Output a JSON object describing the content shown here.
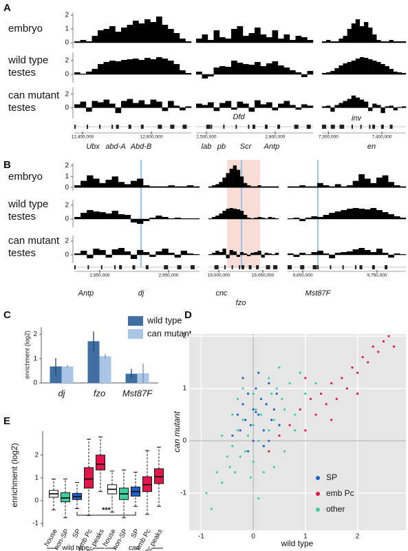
{
  "chart_data": [
    {
      "type": "genome_tracks",
      "panel_label": "A",
      "rows": [
        {
          "label": [
            "embryo"
          ],
          "ylim": [
            -0.4,
            2.2
          ],
          "yticks": [
            0,
            1,
            2
          ],
          "values": [
            [
              0.1,
              0.2,
              0.1,
              0.5,
              0.9,
              1.0,
              1.2,
              0.8,
              1.1,
              1.3,
              1.6,
              1.4,
              1.7,
              1.5,
              1.9,
              1.3,
              1.0,
              0.7,
              0.3,
              0.1
            ],
            [
              0.3,
              0.6,
              0.2,
              0.9,
              0.4,
              0.3,
              1.0,
              1.2,
              0.5,
              0.7,
              1.1,
              0.6,
              0.4,
              0.9,
              0.3,
              0.6,
              0.2,
              0.5,
              0.4,
              0.2
            ],
            [
              0.1,
              0.2,
              0.1,
              0.1,
              0.3,
              0.5,
              1.0,
              1.4,
              1.7,
              1.2,
              1.5,
              1.1,
              0.6,
              0.2,
              0.1,
              0.1,
              0.2,
              0.1,
              0.1,
              0.1
            ]
          ]
        },
        {
          "label": [
            "wild type",
            "testes"
          ],
          "ylim": [
            -1.2,
            3.2
          ],
          "yticks": [
            0,
            2
          ],
          "values": [
            [
              0.3,
              0.1,
              0.4,
              0.8,
              1.5,
              1.8,
              2.0,
              1.9,
              2.1,
              2.2,
              2.3,
              2.1,
              2.4,
              2.2,
              2.5,
              2.3,
              2.0,
              1.5,
              0.6,
              0.2
            ],
            [
              0.4,
              -0.6,
              -0.3,
              1.0,
              1.2,
              1.1,
              2.0,
              1.7,
              1.5,
              1.4,
              1.8,
              1.2,
              1.6,
              1.9,
              1.3,
              1.0,
              0.6,
              0.3,
              -0.4,
              0.5
            ],
            [
              0.2,
              0.3,
              0.5,
              0.9,
              1.3,
              1.6,
              1.8,
              2.0,
              2.3,
              2.5,
              2.4,
              2.2,
              2.0,
              1.8,
              1.5,
              1.2,
              0.8,
              0.4,
              0.3,
              0.2
            ]
          ]
        },
        {
          "label": [
            "can mutant",
            "testes"
          ],
          "ylim": [
            -1.6,
            3
          ],
          "yticks": [
            0,
            2
          ],
          "values": [
            [
              0.5,
              0.9,
              -0.6,
              1.0,
              0.8,
              1.2,
              0.6,
              -0.8,
              1.0,
              1.3,
              0.7,
              1.1,
              0.5,
              1.2,
              0.9,
              -0.5,
              1.0,
              0.3,
              -0.4,
              0.2
            ],
            [
              0.6,
              0.4,
              0.8,
              -0.5,
              0.7,
              1.0,
              -0.3,
              0.9,
              0.6,
              -0.6,
              1.1,
              0.5,
              0.8,
              -0.4,
              0.6,
              1.0,
              0.4,
              -0.3,
              0.5,
              0.3
            ],
            [
              0.2,
              0.3,
              -0.6,
              0.4,
              0.7,
              1.0,
              1.3,
              1.8,
              1.5,
              1.2,
              0.9,
              -0.5,
              0.6,
              0.4,
              -0.8,
              0.2,
              0.3,
              -0.4,
              0.1,
              0.2
            ]
          ]
        }
      ],
      "segments": [
        {
          "xlim": [
            12376000,
            12716000
          ],
          "xticks": [
            {
              "value": 12400000,
              "label": "12,400,000"
            },
            {
              "value": 12600000,
              "label": "12,600,000"
            }
          ],
          "genes": [
            "Ubx",
            "abd-A",
            "Abd-B"
          ]
        },
        {
          "xlim": [
            2455000,
            2965000
          ],
          "xticks": [
            {
              "value": 2500000,
              "label": "2,500,000"
            },
            {
              "value": 2800000,
              "label": "2,800,000"
            }
          ],
          "genes": [
            "Dfd",
            "lab",
            "pb",
            "Scr",
            "Antp"
          ]
        },
        {
          "xlim": [
            7288000,
            7445000
          ],
          "xticks": [
            {
              "value": 7300000,
              "label": "7,300,000"
            },
            {
              "value": 7400000,
              "label": "7,400,000"
            }
          ],
          "genes": [
            "inv",
            "en"
          ]
        }
      ]
    },
    {
      "type": "genome_tracks",
      "panel_label": "B",
      "rows": [
        {
          "label": [
            "embryo"
          ],
          "ylim": [
            -0.3,
            2.2
          ],
          "yticks": [
            0,
            1,
            2
          ],
          "values": [
            [
              0.2,
              0.6,
              1.1,
              0.8,
              0.4,
              0.7,
              1.0,
              0.5,
              0.3,
              0.6,
              0.8,
              0.2,
              0.1,
              0.1,
              0.1,
              0.2,
              0.1,
              0.1,
              0.2,
              0.1
            ],
            [
              0.1,
              0.2,
              0.3,
              0.5,
              0.9,
              1.3,
              1.7,
              2.0,
              1.6,
              1.0,
              0.4,
              0.2,
              0.1,
              0.1,
              0.2,
              0.1,
              0.1,
              0.1,
              0.1,
              0.1
            ],
            [
              0.1,
              0.1,
              0.2,
              0.1,
              0.1,
              0.4,
              0.2,
              0.1,
              0.3,
              0.1,
              0.2,
              0.6,
              1.2,
              0.8,
              0.4,
              0.9,
              1.1,
              0.5,
              0.2,
              0.1
            ]
          ]
        },
        {
          "label": [
            "wild type",
            "testes"
          ],
          "ylim": [
            -1.2,
            2.8
          ],
          "yticks": [
            0,
            2
          ],
          "values": [
            [
              0.3,
              0.9,
              1.3,
              1.1,
              1.0,
              0.8,
              1.2,
              0.7,
              0.6,
              -0.5,
              -0.7,
              -0.3,
              0.2,
              0.5,
              0.3,
              0.1,
              0.2,
              0.1,
              0.1,
              0.1
            ],
            [
              0.1,
              0.3,
              0.5,
              0.8,
              1.2,
              1.5,
              1.6,
              1.5,
              1.4,
              1.2,
              0.6,
              0.2,
              0.1,
              0.2,
              0.3,
              0.2,
              0.1,
              0.3,
              0.2,
              0.1
            ],
            [
              0.1,
              0.2,
              -0.3,
              0.2,
              0.4,
              0.3,
              0.6,
              0.9,
              1.1,
              1.3,
              1.5,
              1.6,
              1.5,
              1.4,
              1.6,
              1.3,
              1.0,
              0.7,
              0.4,
              0.2
            ]
          ]
        },
        {
          "label": [
            "can mutant",
            "testes"
          ],
          "ylim": [
            -1.2,
            2.8
          ],
          "yticks": [
            0,
            2
          ],
          "values": [
            [
              0.2,
              0.6,
              -0.5,
              0.9,
              0.7,
              -0.4,
              0.8,
              1.0,
              0.5,
              -0.6,
              0.7,
              0.4,
              -0.3,
              0.5,
              0.9,
              0.3,
              -0.4,
              0.6,
              0.2,
              0.1
            ],
            [
              0.1,
              0.3,
              0.6,
              0.4,
              0.9,
              -0.5,
              0.7,
              0.5,
              -0.3,
              0.4,
              0.2,
              -0.2,
              0.3,
              0.4,
              0.6,
              -0.4,
              0.3,
              0.2,
              0.1,
              0.3
            ],
            [
              0.2,
              -0.3,
              0.3,
              0.1,
              0.4,
              0.6,
              0.2,
              -0.5,
              0.3,
              0.4,
              0.5,
              0.8,
              1.0,
              0.7,
              0.4,
              0.9,
              0.3,
              -0.4,
              0.2,
              0.1
            ]
          ]
        }
      ],
      "segments": [
        {
          "xlim": [
            2813000,
            2995000
          ],
          "xticks": [
            {
              "value": 2850000,
              "label": "2,850,000"
            },
            {
              "value": 2950000,
              "label": "2,950,000"
            }
          ],
          "genes": [
            "Antp",
            "dj"
          ]
        },
        {
          "xlim": [
            18988300,
            19068000
          ],
          "xticks": [
            {
              "value": 19000000,
              "label": "19,000,000"
            },
            {
              "value": 19050000,
              "label": "19,050,000"
            }
          ],
          "genes": [
            "cnc",
            "fzo"
          ]
        },
        {
          "xlim": [
            9629600,
            9788900
          ],
          "xticks": [
            {
              "value": 9650000,
              "label": "9,650,000"
            },
            {
              "value": 9750000,
              "label": "9,750,000"
            }
          ],
          "genes": [
            "Mst87F"
          ]
        }
      ]
    },
    {
      "type": "bar",
      "panel_label": "C",
      "y_label": "enrichment (log2)",
      "categories": [
        "dj",
        "fzo",
        "Mst87F"
      ],
      "series": [
        {
          "name": "wild type",
          "color": "#3f6fa3",
          "values": [
            0.68,
            1.72,
            0.38
          ],
          "errors": [
            0.35,
            0.4,
            0.2
          ]
        },
        {
          "name": "can mutant",
          "color": "#a9c6e6",
          "values": [
            0.68,
            1.1,
            0.4
          ],
          "errors": [
            0.05,
            0.1,
            0.4
          ]
        }
      ],
      "ylim": [
        0,
        2.3
      ],
      "yticks": [
        0,
        1,
        2
      ]
    },
    {
      "type": "scatter",
      "panel_label": "D",
      "x_label": "wild type",
      "y_label": "can mutant",
      "xlim": [
        -1.23,
        2.93
      ],
      "ylim": [
        -1.71,
        2.04
      ],
      "xticks": [
        -1,
        0,
        1,
        2
      ],
      "yticks": [
        -1,
        0,
        1,
        2
      ],
      "grid": true,
      "series": [
        {
          "name": "other",
          "color": "#3fcf9c",
          "x": [
            -0.9,
            -0.7,
            -0.6,
            -0.5,
            -0.45,
            -0.4,
            -0.35,
            -0.3,
            -0.25,
            -0.2,
            -0.15,
            -0.1,
            -0.05,
            0,
            0,
            0.05,
            0.1,
            0.15,
            0.2,
            0.25,
            0.3,
            0.35,
            0.4,
            0.45,
            0.5,
            0.55,
            0.6,
            0.7,
            0.8,
            0.9,
            1.0,
            -0.6,
            -0.3,
            0.1,
            0.3,
            0.6,
            -0.2,
            0.2,
            0.5,
            -0.8,
            1.2,
            0.0,
            -0.4,
            0.4,
            0.8
          ],
          "y": [
            -1.0,
            -0.6,
            -0.8,
            -0.3,
            -0.5,
            -0.1,
            -0.6,
            0.2,
            -0.3,
            0.4,
            -0.2,
            0.1,
            -0.7,
            0.3,
            -0.4,
            0.6,
            0.0,
            0.5,
            -0.1,
            0.7,
            0.2,
            0.9,
            0.4,
            1.0,
            0.3,
            0.8,
            0.6,
            1.1,
            0.5,
            1.3,
            0.9,
            0.1,
            0.8,
            -1.1,
            1.2,
            -0.2,
            1.0,
            -0.6,
            1.4,
            -1.3,
            1.1,
            0.9,
            0.5,
            -0.5,
            0.2
          ]
        },
        {
          "name": "SP",
          "color": "#1f5fc8",
          "x": [
            -0.4,
            -0.3,
            -0.25,
            -0.2,
            -0.15,
            -0.1,
            -0.05,
            0,
            0.05,
            0.1,
            0.15,
            0.2,
            0.25,
            0.3,
            0.35,
            0.4,
            0.45,
            0.5,
            -0.2,
            0,
            0.2,
            0.1,
            -0.1,
            0.3,
            0.05
          ],
          "y": [
            0.1,
            0.5,
            0.2,
            0.7,
            0.4,
            0.9,
            0.3,
            0.6,
            1.0,
            0.5,
            0.8,
            0.2,
            0.7,
            1.1,
            0.4,
            0.6,
            0.9,
            0.3,
            1.2,
            0.0,
            -0.1,
            1.3,
            -0.2,
            0.0,
            0.55
          ]
        },
        {
          "name": "emb Pc",
          "color": "#e3164c",
          "x": [
            0.3,
            0.5,
            0.7,
            0.9,
            1.0,
            1.1,
            1.2,
            1.3,
            1.4,
            1.5,
            1.6,
            1.7,
            1.8,
            1.9,
            2.0,
            2.1,
            2.2,
            2.3,
            2.4,
            2.5,
            2.6,
            2.7,
            1.0,
            1.5,
            2.0
          ],
          "y": [
            -0.2,
            0.1,
            0.3,
            0.6,
            0.2,
            0.8,
            0.5,
            0.9,
            0.7,
            1.1,
            0.8,
            1.2,
            1.0,
            1.4,
            1.3,
            1.6,
            1.5,
            1.8,
            1.7,
            1.9,
            2.0,
            1.8,
            1.2,
            0.4,
            0.9
          ]
        }
      ],
      "legend_order": [
        1,
        2,
        0
      ]
    },
    {
      "type": "box",
      "panel_label": "E",
      "y_label": "enrichment (log2)",
      "categories": [
        "house",
        "non-SP",
        "SP",
        "emb Pc",
        "Pc peaks",
        "house",
        "non-SP",
        "SP",
        "emb Pc",
        "Pc peaks"
      ],
      "colors": [
        "#ffffff",
        "#3fcf9c",
        "#1f5fc8",
        "#e3164c",
        "#e3164c",
        "#ffffff",
        "#3fcf9c",
        "#1f5fc8",
        "#e3164c",
        "#e3164c"
      ],
      "boxes": [
        {
          "whislo": -0.4,
          "q1": 0.15,
          "median": 0.3,
          "q3": 0.45,
          "whishi": 0.95
        },
        {
          "whislo": -0.75,
          "q1": -0.05,
          "median": 0.12,
          "q3": 0.35,
          "whishi": 0.95
        },
        {
          "whislo": -0.35,
          "q1": 0.05,
          "median": 0.18,
          "q3": 0.32,
          "whishi": 0.8
        },
        {
          "whislo": -0.65,
          "q1": 0.55,
          "median": 0.95,
          "q3": 1.45,
          "whishi": 2.7
        },
        {
          "whislo": 0.4,
          "q1": 1.35,
          "median": 1.6,
          "q3": 2.0,
          "whishi": 2.8
        },
        {
          "whislo": -0.5,
          "q1": 0.3,
          "median": 0.5,
          "q3": 0.7,
          "whishi": 1.3
        },
        {
          "whislo": -0.75,
          "q1": 0.05,
          "median": 0.3,
          "q3": 0.55,
          "whishi": 1.35
        },
        {
          "whislo": -0.25,
          "q1": 0.2,
          "median": 0.4,
          "q3": 0.6,
          "whishi": 1.25
        },
        {
          "whislo": -0.6,
          "q1": 0.4,
          "median": 0.7,
          "q3": 1.05,
          "whishi": 2.2
        },
        {
          "whislo": -0.25,
          "q1": 0.75,
          "median": 1.05,
          "q3": 1.4,
          "whishi": 2.35
        }
      ],
      "groups": [
        "wild type",
        "can"
      ],
      "annotation": "***",
      "ylim": [
        -1.15,
        3.05
      ],
      "yticks": [
        -1,
        0,
        1,
        2
      ]
    }
  ]
}
